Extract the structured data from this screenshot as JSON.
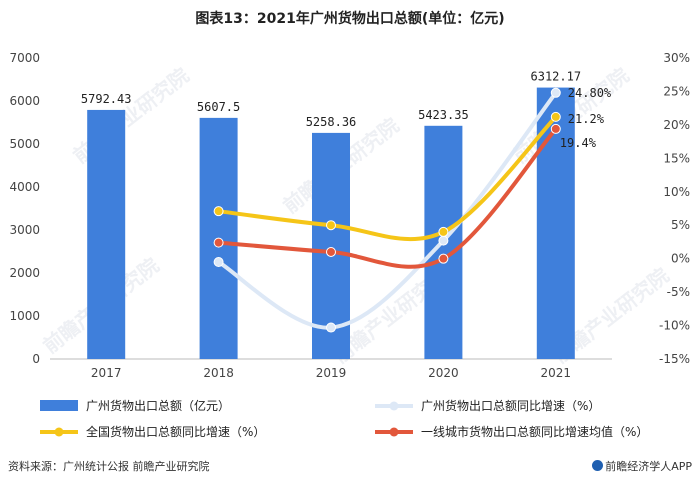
{
  "title": "图表13：2021年广州货物出口总额(单位：亿元)",
  "source": "资料来源：广州统计公报 前瞻产业研究院",
  "brand": "前瞻经济学人APP",
  "watermark": "前瞻产业研究院",
  "colors": {
    "bar": "#3f7fdb",
    "guangzhou_growth": "#dde8f6",
    "national_growth": "#f5c518",
    "tier1_growth": "#e2573b"
  },
  "chart_data": {
    "type": "bar",
    "categories": [
      "2017",
      "2018",
      "2019",
      "2020",
      "2021"
    ],
    "left_axis": {
      "min": 0,
      "max": 7000,
      "ticks": [
        "0",
        "1000",
        "2000",
        "3000",
        "4000",
        "5000",
        "6000",
        "7000"
      ]
    },
    "right_axis": {
      "min": -15,
      "max": 30,
      "ticks": [
        "-15%",
        "-10%",
        "-5%",
        "0%",
        "5%",
        "10%",
        "15%",
        "20%",
        "25%",
        "30%"
      ]
    },
    "series": [
      {
        "name": "广州货物出口总额（亿元）",
        "type": "bar",
        "axis": "left",
        "values": [
          5792.43,
          5607.5,
          5258.36,
          5423.35,
          6312.17
        ],
        "labels": [
          "5792.43",
          "5607.5",
          "5258.36",
          "5423.35",
          "6312.17"
        ]
      },
      {
        "name": "广州货物出口总额同比增速（%）",
        "type": "line",
        "axis": "right",
        "values": [
          null,
          -0.5,
          -10.3,
          2.7,
          24.8
        ],
        "labels": [
          "",
          "",
          "",
          "",
          "24.80%"
        ]
      },
      {
        "name": "全国货物出口总额同比增速（%）",
        "type": "line",
        "axis": "right",
        "values": [
          null,
          7.1,
          5.0,
          4.0,
          21.2
        ],
        "labels": [
          "",
          "",
          "",
          "",
          "21.2%"
        ]
      },
      {
        "name": "一线城市货物出口总额同比增速均值（%）",
        "type": "line",
        "axis": "right",
        "values": [
          null,
          2.4,
          1.0,
          0.0,
          19.4
        ],
        "labels": [
          "",
          "",
          "",
          "",
          "19.4%"
        ]
      }
    ]
  }
}
